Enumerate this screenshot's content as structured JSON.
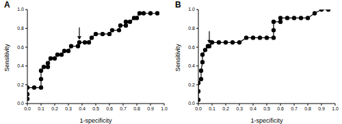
{
  "chart_data": [
    {
      "type": "line",
      "title": "A",
      "x_label": "1-specificity",
      "y_label": "Sensitivity",
      "color": "#000000",
      "marker": "circle",
      "x": [
        0,
        0,
        0,
        0.05,
        0.1,
        0.1,
        0.1,
        0.12,
        0.15,
        0.15,
        0.17,
        0.2,
        0.22,
        0.25,
        0.27,
        0.3,
        0.32,
        0.37,
        0.38,
        0.42,
        0.45,
        0.47,
        0.5,
        0.55,
        0.6,
        0.62,
        0.67,
        0.68,
        0.72,
        0.72,
        0.75,
        0.78,
        0.8,
        0.82,
        0.85,
        0.9,
        0.95
      ],
      "values": [
        0.05,
        0.1,
        0.17,
        0.17,
        0.17,
        0.26,
        0.35,
        0.39,
        0.39,
        0.43,
        0.48,
        0.48,
        0.52,
        0.52,
        0.56,
        0.56,
        0.61,
        0.61,
        0.65,
        0.65,
        0.65,
        0.7,
        0.74,
        0.74,
        0.74,
        0.78,
        0.78,
        0.83,
        0.83,
        0.87,
        0.87,
        0.91,
        0.91,
        0.96,
        0.96,
        0.96,
        0.96
      ],
      "arrow": {
        "x": 0.38,
        "y": 0.65
      },
      "xlim": [
        0,
        1
      ],
      "xticks": [
        {
          "value": 0,
          "label": "0.0"
        },
        {
          "value": 0.1,
          "label": "0.1"
        },
        {
          "value": 0.2,
          "label": "0.2"
        },
        {
          "value": 0.3,
          "label": "0.3"
        },
        {
          "value": 0.4,
          "label": "0.4"
        },
        {
          "value": 0.5,
          "label": "0.5"
        },
        {
          "value": 0.6,
          "label": "0.6"
        },
        {
          "value": 0.7,
          "label": "0.7"
        },
        {
          "value": 0.8,
          "label": "0.8"
        },
        {
          "value": 0.9,
          "label": "0.9"
        },
        {
          "value": 1,
          "label": "1.0"
        }
      ],
      "ylim": [
        0,
        1
      ],
      "yticks": [
        {
          "value": 0,
          "label": "0.0"
        },
        {
          "value": 0.2,
          "label": "0.2"
        },
        {
          "value": 0.4,
          "label": "0.4"
        },
        {
          "value": 0.6,
          "label": "0.6"
        },
        {
          "value": 0.8,
          "label": "0.8"
        },
        {
          "value": 1,
          "label": "1.0"
        }
      ]
    },
    {
      "type": "line",
      "title": "B",
      "x_label": "1-specificity",
      "y_label": "Sensitivity",
      "color": "#000000",
      "marker": "circle",
      "x": [
        0,
        0,
        0,
        0.02,
        0.02,
        0.03,
        0.03,
        0.05,
        0.07,
        0.08,
        0.1,
        0.15,
        0.2,
        0.25,
        0.3,
        0.35,
        0.4,
        0.45,
        0.5,
        0.55,
        0.55,
        0.55,
        0.6,
        0.6,
        0.65,
        0.7,
        0.75,
        0.8,
        0.85,
        0.9,
        0.95
      ],
      "values": [
        0.04,
        0.13,
        0.22,
        0.26,
        0.35,
        0.44,
        0.52,
        0.57,
        0.61,
        0.61,
        0.65,
        0.65,
        0.65,
        0.65,
        0.65,
        0.7,
        0.7,
        0.7,
        0.7,
        0.7,
        0.78,
        0.87,
        0.87,
        0.91,
        0.91,
        0.91,
        0.91,
        0.91,
        0.96,
        1,
        1
      ],
      "arrow": {
        "x": 0.08,
        "y": 0.61
      },
      "xlim": [
        0,
        1
      ],
      "xticks": [
        {
          "value": 0,
          "label": "0.0"
        },
        {
          "value": 0.1,
          "label": "0.1"
        },
        {
          "value": 0.2,
          "label": "0.2"
        },
        {
          "value": 0.3,
          "label": "0.3"
        },
        {
          "value": 0.4,
          "label": "0.4"
        },
        {
          "value": 0.5,
          "label": "0.5"
        },
        {
          "value": 0.6,
          "label": "0.6"
        },
        {
          "value": 0.7,
          "label": "0.7"
        },
        {
          "value": 0.8,
          "label": "0.8"
        },
        {
          "value": 0.9,
          "label": "0.9"
        },
        {
          "value": 1,
          "label": "1.0"
        }
      ],
      "ylim": [
        0,
        1
      ],
      "yticks": [
        {
          "value": 0,
          "label": "0.0"
        },
        {
          "value": 0.2,
          "label": "0.2"
        },
        {
          "value": 0.4,
          "label": "0.4"
        },
        {
          "value": 0.6,
          "label": "0.6"
        },
        {
          "value": 0.8,
          "label": "0.8"
        },
        {
          "value": 1,
          "label": "1.0"
        }
      ]
    }
  ]
}
